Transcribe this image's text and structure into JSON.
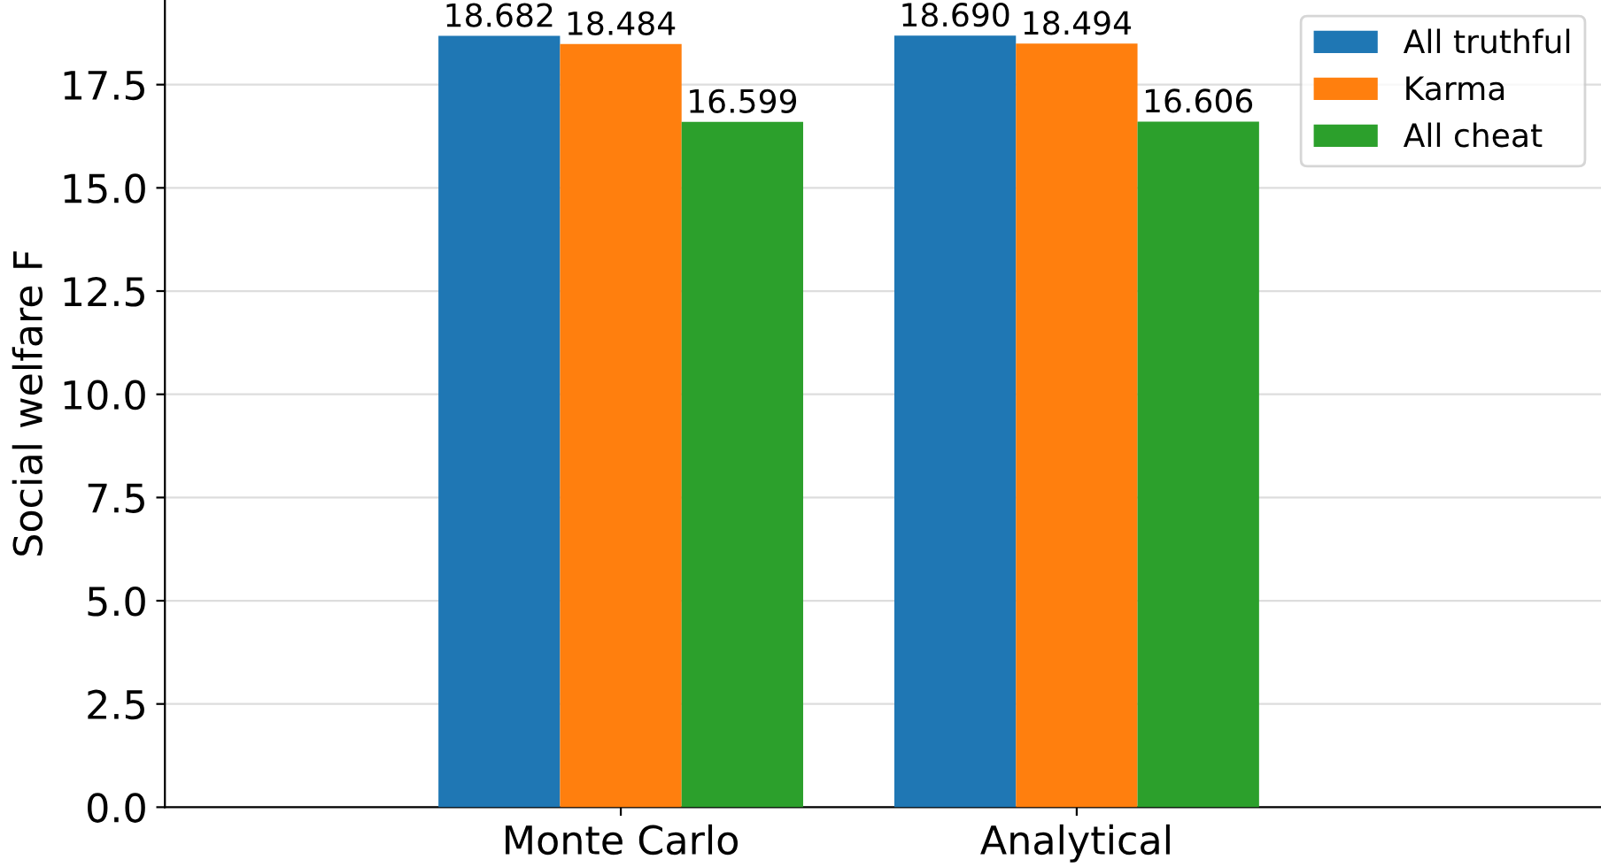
{
  "chart_data": {
    "type": "bar",
    "ylabel": "Social welfare F",
    "categories": [
      "Monte Carlo",
      "Analytical"
    ],
    "series": [
      {
        "name": "All truthful",
        "color": "#1f77b4",
        "values": [
          18.682,
          18.69
        ],
        "value_labels": [
          "18.682",
          "18.690"
        ]
      },
      {
        "name": "Karma",
        "color": "#ff7f0e",
        "values": [
          18.484,
          18.494
        ],
        "value_labels": [
          "18.484",
          "18.494"
        ]
      },
      {
        "name": "All cheat",
        "color": "#2ca02c",
        "values": [
          16.599,
          16.606
        ],
        "value_labels": [
          "16.599",
          "16.606"
        ]
      }
    ],
    "ylim": [
      0,
      19.55
    ],
    "yticks": [
      "0.0",
      "2.5",
      "5.0",
      "7.5",
      "10.0",
      "12.5",
      "15.0",
      "17.5"
    ],
    "grid": "y",
    "legend": "top right"
  }
}
